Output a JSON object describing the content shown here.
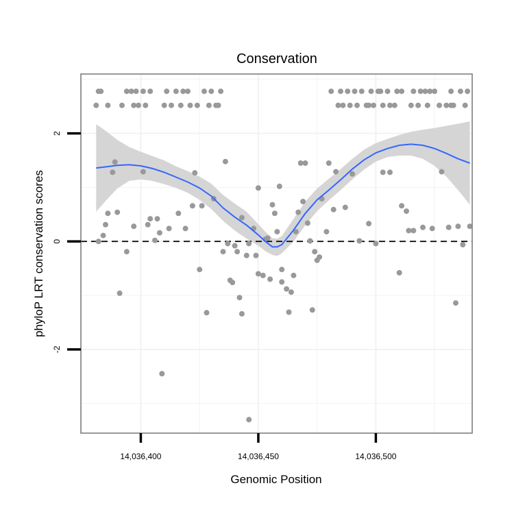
{
  "chart_data": {
    "type": "scatter",
    "title": "Conservation",
    "xlabel": "Genomic Position",
    "ylabel": "phyloP LRT conservation scores",
    "xlim": [
      14036374.5,
      14036541
    ],
    "ylim": [
      -3.55,
      3.1
    ],
    "x_ticks": [
      14036400,
      14036450,
      14036500
    ],
    "x_tick_labels": [
      "14,036,400",
      "14,036,450",
      "14,036,500"
    ],
    "y_ticks": [
      -2,
      0,
      2
    ],
    "y_tick_labels": [
      "-2",
      "0",
      "2"
    ],
    "grid": true,
    "reference_line": {
      "y": 0,
      "style": "dashed"
    },
    "colors": {
      "points": "#999999",
      "smooth_line": "#3366ff",
      "ribbon": "#d3d3d3",
      "panel_border": "#7f7f7f",
      "grid": "#f2f2f2"
    },
    "points": [
      [
        14036381,
        2.52
      ],
      [
        14036382,
        2.78
      ],
      [
        14036383,
        2.78
      ],
      [
        14036386,
        2.52
      ],
      [
        14036388,
        1.28
      ],
      [
        14036389,
        1.47
      ],
      [
        14036384,
        0.11
      ],
      [
        14036385,
        0.31
      ],
      [
        14036386,
        0.52
      ],
      [
        14036390,
        0.54
      ],
      [
        14036382,
        0.0
      ],
      [
        14036391,
        -0.96
      ],
      [
        14036392,
        2.52
      ],
      [
        14036394,
        2.78
      ],
      [
        14036396,
        2.78
      ],
      [
        14036397,
        2.52
      ],
      [
        14036394,
        -0.19
      ],
      [
        14036397,
        0.28
      ],
      [
        14036398,
        2.78
      ],
      [
        14036399,
        2.52
      ],
      [
        14036401,
        2.78
      ],
      [
        14036402,
        2.52
      ],
      [
        14036404,
        2.78
      ],
      [
        14036401,
        1.29
      ],
      [
        14036403,
        0.31
      ],
      [
        14036404,
        0.42
      ],
      [
        14036406,
        0.02
      ],
      [
        14036407,
        0.42
      ],
      [
        14036408,
        0.16
      ],
      [
        14036409,
        -2.45
      ],
      [
        14036410,
        2.52
      ],
      [
        14036411,
        2.78
      ],
      [
        14036412,
        0.24
      ],
      [
        14036413,
        2.52
      ],
      [
        14036415,
        2.78
      ],
      [
        14036416,
        0.52
      ],
      [
        14036417,
        2.52
      ],
      [
        14036418,
        2.78
      ],
      [
        14036419,
        0.24
      ],
      [
        14036420,
        2.78
      ],
      [
        14036421,
        2.52
      ],
      [
        14036422,
        0.66
      ],
      [
        14036423,
        1.27
      ],
      [
        14036424,
        2.52
      ],
      [
        14036425,
        -0.52
      ],
      [
        14036426,
        0.66
      ],
      [
        14036427,
        2.78
      ],
      [
        14036428,
        -1.32
      ],
      [
        14036429,
        2.52
      ],
      [
        14036430,
        2.78
      ],
      [
        14036431,
        0.79
      ],
      [
        14036432,
        2.52
      ],
      [
        14036433,
        2.52
      ],
      [
        14036434,
        2.78
      ],
      [
        14036435,
        -0.19
      ],
      [
        14036436,
        1.48
      ],
      [
        14036437,
        -0.04
      ],
      [
        14036438,
        -0.72
      ],
      [
        14036439,
        -0.76
      ],
      [
        14036440,
        -0.08
      ],
      [
        14036441,
        -0.19
      ],
      [
        14036442,
        -1.04
      ],
      [
        14036443,
        -1.34
      ],
      [
        14036443,
        0.44
      ],
      [
        14036445,
        -0.26
      ],
      [
        14036446,
        -0.04
      ],
      [
        14036446,
        -3.3
      ],
      [
        14036448,
        0.24
      ],
      [
        14036449,
        -0.26
      ],
      [
        14036450,
        0.99
      ],
      [
        14036450,
        -0.6
      ],
      [
        14036452,
        -0.63
      ],
      [
        14036453,
        0.04
      ],
      [
        14036454,
        0.06
      ],
      [
        14036455,
        -0.7
      ],
      [
        14036456,
        0.68
      ],
      [
        14036457,
        0.52
      ],
      [
        14036458,
        0.18
      ],
      [
        14036459,
        1.02
      ],
      [
        14036460,
        -0.75
      ],
      [
        14036460,
        -0.52
      ],
      [
        14036462,
        -0.88
      ],
      [
        14036463,
        -1.31
      ],
      [
        14036464,
        -0.94
      ],
      [
        14036465,
        -0.63
      ],
      [
        14036466,
        0.18
      ],
      [
        14036467,
        0.54
      ],
      [
        14036468,
        1.45
      ],
      [
        14036469,
        0.74
      ],
      [
        14036470,
        1.45
      ],
      [
        14036471,
        0.34
      ],
      [
        14036472,
        0.01
      ],
      [
        14036473,
        -1.27
      ],
      [
        14036474,
        -0.19
      ],
      [
        14036475,
        -0.35
      ],
      [
        14036476,
        -0.29
      ],
      [
        14036477,
        0.79
      ],
      [
        14036479,
        0.18
      ],
      [
        14036480,
        1.45
      ],
      [
        14036481,
        2.78
      ],
      [
        14036482,
        0.59
      ],
      [
        14036483,
        1.29
      ],
      [
        14036484,
        2.52
      ],
      [
        14036485,
        2.78
      ],
      [
        14036486,
        2.52
      ],
      [
        14036487,
        0.63
      ],
      [
        14036488,
        2.78
      ],
      [
        14036489,
        2.52
      ],
      [
        14036490,
        1.25
      ],
      [
        14036491,
        2.78
      ],
      [
        14036492,
        2.52
      ],
      [
        14036493,
        0.01
      ],
      [
        14036494,
        2.78
      ],
      [
        14036496,
        2.52
      ],
      [
        14036497,
        2.52
      ],
      [
        14036497,
        0.33
      ],
      [
        14036498,
        2.78
      ],
      [
        14036499,
        2.52
      ],
      [
        14036500,
        -0.04
      ],
      [
        14036501,
        2.78
      ],
      [
        14036502,
        2.78
      ],
      [
        14036503,
        2.52
      ],
      [
        14036503,
        1.28
      ],
      [
        14036505,
        2.78
      ],
      [
        14036506,
        1.28
      ],
      [
        14036506,
        2.52
      ],
      [
        14036508,
        2.52
      ],
      [
        14036509,
        2.78
      ],
      [
        14036510,
        -0.58
      ],
      [
        14036511,
        0.66
      ],
      [
        14036511,
        2.78
      ],
      [
        14036513,
        0.56
      ],
      [
        14036514,
        0.2
      ],
      [
        14036515,
        2.52
      ],
      [
        14036516,
        2.78
      ],
      [
        14036516,
        0.2
      ],
      [
        14036518,
        2.52
      ],
      [
        14036519,
        2.78
      ],
      [
        14036520,
        0.26
      ],
      [
        14036521,
        2.78
      ],
      [
        14036522,
        2.52
      ],
      [
        14036523,
        2.78
      ],
      [
        14036524,
        0.24
      ],
      [
        14036525,
        2.78
      ],
      [
        14036527,
        2.52
      ],
      [
        14036528,
        1.29
      ],
      [
        14036530,
        2.52
      ],
      [
        14036531,
        0.26
      ],
      [
        14036532,
        2.78
      ],
      [
        14036532,
        2.52
      ],
      [
        14036533,
        2.52
      ],
      [
        14036534,
        -1.14
      ],
      [
        14036535,
        0.28
      ],
      [
        14036536,
        2.78
      ],
      [
        14036537,
        -0.06
      ],
      [
        14036538,
        2.52
      ],
      [
        14036539,
        2.78
      ],
      [
        14036540,
        0.28
      ]
    ],
    "smooth": {
      "x": [
        14036381,
        14036385,
        14036390,
        14036395,
        14036400,
        14036405,
        14036410,
        14036415,
        14036420,
        14036425,
        14036430,
        14036435,
        14036440,
        14036445,
        14036450,
        14036453,
        14036456,
        14036458,
        14036460,
        14036465,
        14036470,
        14036475,
        14036480,
        14036485,
        14036490,
        14036495,
        14036500,
        14036505,
        14036510,
        14036515,
        14036520,
        14036525,
        14036530,
        14036535,
        14036540
      ],
      "fit": [
        1.36,
        1.38,
        1.41,
        1.42,
        1.4,
        1.35,
        1.28,
        1.19,
        1.1,
        0.99,
        0.84,
        0.62,
        0.45,
        0.3,
        0.12,
        0.0,
        -0.1,
        -0.1,
        -0.06,
        0.21,
        0.52,
        0.77,
        0.95,
        1.14,
        1.34,
        1.51,
        1.64,
        1.72,
        1.78,
        1.8,
        1.78,
        1.72,
        1.63,
        1.53,
        1.45
      ],
      "lower": [
        0.55,
        0.75,
        0.98,
        1.12,
        1.15,
        1.12,
        1.06,
        0.99,
        0.9,
        0.77,
        0.6,
        0.38,
        0.2,
        0.05,
        -0.08,
        -0.18,
        -0.25,
        -0.27,
        -0.22,
        0.0,
        0.3,
        0.56,
        0.76,
        0.95,
        1.15,
        1.33,
        1.48,
        1.56,
        1.59,
        1.59,
        1.53,
        1.4,
        1.2,
        0.95,
        0.68
      ],
      "upper": [
        2.17,
        2.05,
        1.88,
        1.75,
        1.66,
        1.58,
        1.5,
        1.39,
        1.3,
        1.2,
        1.07,
        0.86,
        0.7,
        0.55,
        0.32,
        0.18,
        0.06,
        0.05,
        0.1,
        0.42,
        0.74,
        0.98,
        1.16,
        1.34,
        1.53,
        1.7,
        1.82,
        1.9,
        1.97,
        2.03,
        2.07,
        2.1,
        2.14,
        2.18,
        2.22
      ]
    }
  }
}
